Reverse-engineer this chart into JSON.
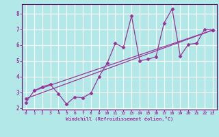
{
  "xlabel": "Windchill (Refroidissement éolien,°C)",
  "bg_color": "#b3e8e8",
  "line_color": "#993399",
  "grid_color": "#ffffff",
  "spine_color": "#660066",
  "xlim": [
    -0.5,
    23.5
  ],
  "ylim": [
    1.9,
    8.6
  ],
  "xticks": [
    0,
    1,
    2,
    3,
    4,
    5,
    6,
    7,
    8,
    9,
    10,
    11,
    12,
    13,
    14,
    15,
    16,
    17,
    18,
    19,
    20,
    21,
    22,
    23
  ],
  "yticks": [
    2,
    3,
    4,
    5,
    6,
    7,
    8
  ],
  "line1_x": [
    0,
    1,
    2,
    3,
    4,
    5,
    6,
    7,
    8,
    9,
    10,
    11,
    12,
    13,
    14,
    15,
    16,
    17,
    18,
    19,
    20,
    21,
    22,
    23
  ],
  "line1_y": [
    2.35,
    3.1,
    3.35,
    3.5,
    2.9,
    2.25,
    2.7,
    2.65,
    2.95,
    4.0,
    4.85,
    6.1,
    5.85,
    7.85,
    5.0,
    5.1,
    5.25,
    7.4,
    8.3,
    5.3,
    6.05,
    6.1,
    7.0,
    6.95
  ],
  "line2_x": [
    1,
    23
  ],
  "line2_y": [
    3.1,
    6.95
  ],
  "line3_x": [
    0,
    23
  ],
  "line3_y": [
    2.6,
    6.95
  ],
  "marker": "D",
  "markersize": 2.5,
  "linewidth": 0.9
}
